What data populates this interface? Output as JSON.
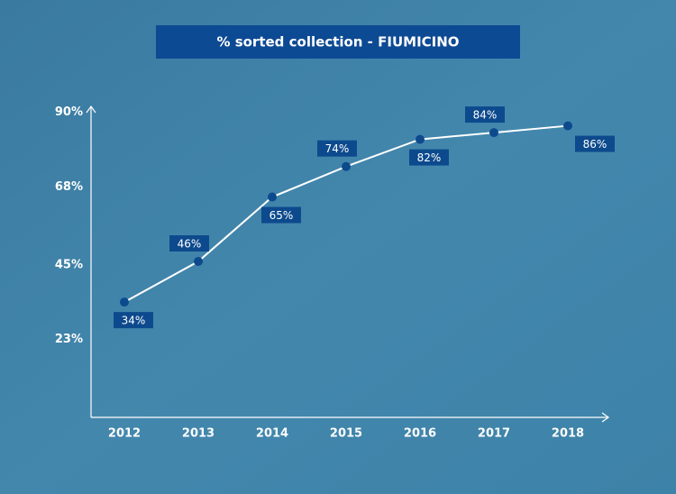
{
  "chart_data": {
    "type": "line",
    "title": "% sorted collection  - FIUMICINO",
    "categories": [
      "2012",
      "2013",
      "2014",
      "2015",
      "2016",
      "2017",
      "2018"
    ],
    "values": [
      34,
      46,
      65,
      74,
      82,
      84,
      86
    ],
    "value_labels": [
      "34%",
      "46%",
      "65%",
      "74%",
      "82%",
      "84%",
      "86%"
    ],
    "color": "#ffffff",
    "marker_color": "#0d4a8d",
    "ylim": [
      0,
      92
    ],
    "yticks": [
      {
        "value": 23,
        "label": "23%"
      },
      {
        "value": 45,
        "label": "45%"
      },
      {
        "value": 68,
        "label": "68%"
      },
      {
        "value": 90,
        "label": "90%"
      }
    ],
    "grid": false
  }
}
